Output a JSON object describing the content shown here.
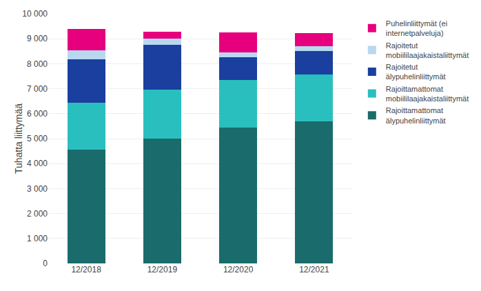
{
  "chart_data": {
    "type": "bar",
    "stacked": true,
    "categories": [
      "12/2018",
      "12/2019",
      "12/2020",
      "12/2021"
    ],
    "series": [
      {
        "name": "Rajoittamattomat\nälypuhelinliittymät",
        "color": "#1a6b6b",
        "values": [
          4550,
          5000,
          5450,
          5680
        ]
      },
      {
        "name": "Rajoittamattomat\nmobiililaajakaistaliittymät",
        "color": "#2abfbf",
        "values": [
          1880,
          1950,
          1900,
          1890
        ]
      },
      {
        "name": "Rajoitetut\nälypuhelinliittymät",
        "color": "#1a3f9e",
        "values": [
          1750,
          1800,
          900,
          930
        ]
      },
      {
        "name": "Rajoitetut\nmobiililaajakaistaliittymät",
        "color": "#b8d8f0",
        "values": [
          350,
          250,
          200,
          200
        ]
      },
      {
        "name": "Puhelinliittymät (ei\ninternetpalveluja)",
        "color": "#e6007e",
        "values": [
          850,
          280,
          800,
          540
        ]
      }
    ],
    "ylabel": "Tuhatta liittymää",
    "ylim": [
      0,
      10000
    ],
    "yticks": [
      0,
      {
        "value": 1000,
        "label": "1 000"
      },
      {
        "value": 2000,
        "label": "2 000"
      },
      {
        "value": 3000,
        "label": "3 000"
      },
      {
        "value": 4000,
        "label": "4 000"
      },
      {
        "value": 5000,
        "label": "5 000"
      },
      {
        "value": 6000,
        "label": "6 000"
      },
      {
        "value": 7000,
        "label": "7 000"
      },
      {
        "value": 8000,
        "label": "8 000"
      },
      {
        "value": 9000,
        "label": "9 000"
      },
      {
        "value": 10000,
        "label": "10 000"
      }
    ],
    "grid": true,
    "legend": "right"
  }
}
